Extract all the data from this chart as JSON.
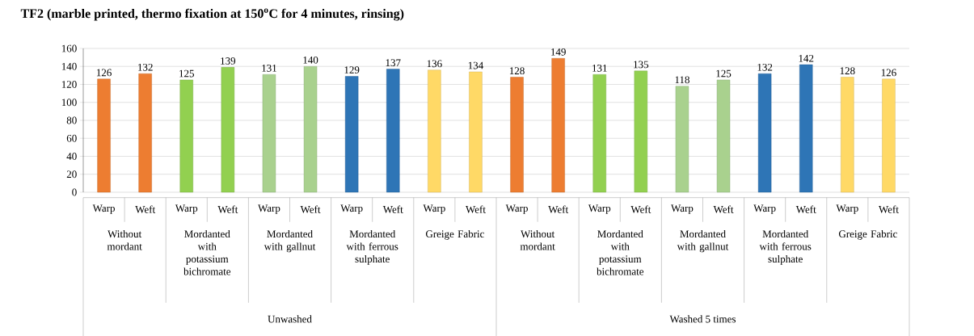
{
  "chart_data": {
    "type": "bar",
    "title": "TF2 (marble printed, thermo fixation at 150$^{o}$C for 4 minutes, rinsing)",
    "categories": [
      "Warp",
      "Weft",
      "Warp",
      "Weft",
      "Warp",
      "Weft",
      "Warp",
      "Weft",
      "Warp",
      "Weft",
      "Warp",
      "Weft",
      "Warp",
      "Weft",
      "Warp",
      "Weft",
      "Warp",
      "Weft",
      "Warp",
      "Weft"
    ],
    "values": [
      126,
      132,
      125,
      139,
      131,
      140,
      129,
      137,
      136,
      134,
      128,
      149,
      131,
      135,
      118,
      125,
      132,
      142,
      128,
      126
    ],
    "colors": [
      "#ed7d31",
      "#ed7d31",
      "#92d050",
      "#92d050",
      "#a9d18e",
      "#a9d18e",
      "#2e75b6",
      "#2e75b6",
      "#ffd966",
      "#ffd966",
      "#ed7d31",
      "#ed7d31",
      "#92d050",
      "#92d050",
      "#a9d18e",
      "#a9d18e",
      "#2e75b6",
      "#2e75b6",
      "#ffd966",
      "#ffd966"
    ],
    "ylim": [
      0,
      160
    ],
    "yticks": [
      0,
      20,
      40,
      60,
      80,
      100,
      120,
      140,
      160
    ],
    "grid": "y",
    "data_labels": true,
    "annotations": [
      "Without mordant",
      "Mordanted with potassium bichromate",
      "Mordanted with gallnut",
      "Mordanted with ferrous sulphate",
      "Greige Fabric",
      "Without mordant",
      "Mordanted with potassium bichromate",
      "Mordanted with gallnut",
      "Mordanted with ferrous sulphate",
      "Greige Fabric",
      "Unwashed",
      "Washed 5 times"
    ]
  }
}
